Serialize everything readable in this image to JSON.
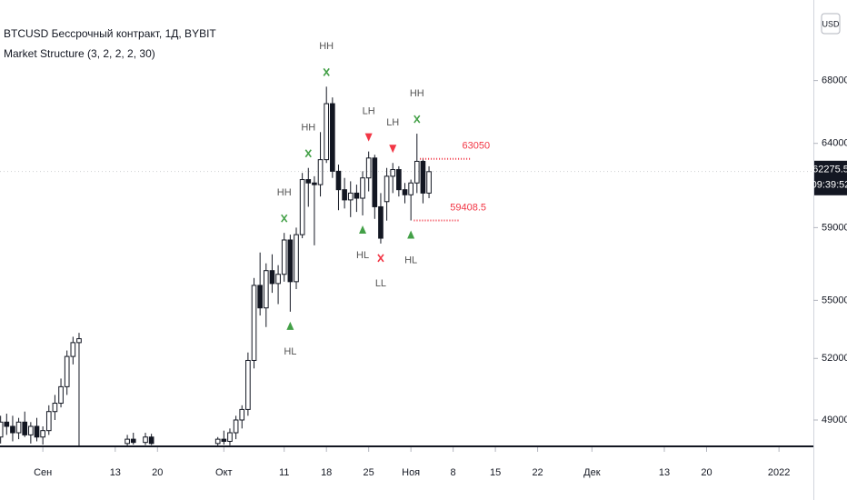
{
  "chart_data": {
    "type": "candlestick",
    "title": "BTCUSD Бессрочный контракт, 1Д, BYBIT",
    "subtitle": "Market Structure (3, 2, 2, 2, 30)",
    "currency": "USD",
    "log_scale": true,
    "x": [
      -7,
      -6,
      -5,
      -4,
      -3,
      -2,
      -1,
      0,
      1,
      2,
      3,
      4,
      5,
      6,
      14,
      15,
      17,
      18,
      29,
      30,
      31,
      32,
      33,
      34,
      35,
      36,
      37,
      38,
      39,
      40,
      41,
      42,
      43,
      44,
      45,
      46,
      47,
      48,
      49,
      50,
      51,
      52,
      53,
      54,
      55,
      56,
      57,
      58,
      59,
      60,
      61,
      62,
      63,
      64
    ],
    "open": [
      48200,
      48900,
      48700,
      48400,
      48900,
      48300,
      48700,
      48200,
      48500,
      49400,
      49800,
      50600,
      52100,
      52800,
      47900,
      48100,
      47950,
      48200,
      47900,
      48100,
      48000,
      48400,
      49000,
      49500,
      51900,
      55800,
      54600,
      56600,
      55900,
      56400,
      58300,
      56000,
      58600,
      61800,
      61600,
      61500,
      63000,
      66500,
      62300,
      61200,
      60600,
      61000,
      60700,
      61900,
      63100,
      60200,
      60500,
      62000,
      62400,
      61200,
      60900,
      61600,
      62900,
      61000
    ],
    "high": [
      49200,
      49300,
      49200,
      49100,
      49400,
      48900,
      49100,
      48700,
      49700,
      50200,
      51000,
      52400,
      53100,
      53300,
      48300,
      48400,
      48400,
      48350,
      48200,
      48500,
      48600,
      49200,
      49700,
      52300,
      56200,
      57600,
      57000,
      57500,
      56900,
      58700,
      58600,
      59000,
      62200,
      62500,
      62000,
      64700,
      67600,
      66900,
      62700,
      61900,
      61700,
      61500,
      62300,
      63500,
      63300,
      61000,
      62500,
      62800,
      62600,
      61600,
      61800,
      64600,
      63100,
      62600
    ],
    "low": [
      47900,
      48300,
      48000,
      48100,
      48200,
      47900,
      48000,
      47850,
      48300,
      49000,
      49600,
      50200,
      51700,
      47810,
      47810,
      47850,
      47830,
      47830,
      47810,
      47850,
      47820,
      48100,
      48600,
      49200,
      51500,
      54200,
      53600,
      55400,
      54800,
      56000,
      54400,
      55600,
      58400,
      60200,
      58000,
      60800,
      62800,
      61900,
      60000,
      60100,
      59600,
      59900,
      59700,
      61100,
      59500,
      58100,
      59400,
      61000,
      60800,
      60400,
      59408.5,
      61000,
      60400,
      60700
    ],
    "close": [
      48900,
      48700,
      48400,
      48900,
      48300,
      48700,
      48200,
      48500,
      49400,
      49800,
      50600,
      52100,
      52800,
      53000,
      48100,
      47950,
      48200,
      47900,
      48100,
      48000,
      48400,
      49000,
      49500,
      51900,
      55800,
      54600,
      56600,
      55900,
      56400,
      58300,
      56000,
      58600,
      61800,
      61600,
      61500,
      63000,
      66500,
      62300,
      61200,
      60600,
      61000,
      60700,
      61900,
      63100,
      60200,
      58400,
      62000,
      62400,
      61200,
      60900,
      61600,
      62900,
      61000,
      62275.5
    ],
    "xlim": [
      -7.1,
      127.7
    ],
    "xticks": [
      {
        "value": 0,
        "label": "Сен"
      },
      {
        "value": 12,
        "label": "13"
      },
      {
        "value": 19,
        "label": "20"
      },
      {
        "value": 30,
        "label": "Окт"
      },
      {
        "value": 40,
        "label": "11"
      },
      {
        "value": 47,
        "label": "18"
      },
      {
        "value": 54,
        "label": "25"
      },
      {
        "value": 61,
        "label": "Ноя"
      },
      {
        "value": 68,
        "label": "8"
      },
      {
        "value": 75,
        "label": "15"
      },
      {
        "value": 82,
        "label": "22"
      },
      {
        "value": 91,
        "label": "Дек"
      },
      {
        "value": 103,
        "label": "13"
      },
      {
        "value": 110,
        "label": "20"
      },
      {
        "value": 122,
        "label": "2022"
      }
    ],
    "ylim": [
      47810,
      73500
    ],
    "yticks": [
      {
        "value": 49000,
        "label": "49000.0"
      },
      {
        "value": 52000,
        "label": "52000.0"
      },
      {
        "value": 55000,
        "label": "55000.0"
      },
      {
        "value": 59000,
        "label": "59000.0"
      },
      {
        "value": 64000,
        "label": "64000.0"
      },
      {
        "value": 68000,
        "label": "68000.0"
      }
    ],
    "last_price": 62275.5,
    "countdown": "09:39:52",
    "markers": [
      {
        "text": "HH",
        "sign": "x",
        "color": "#43a047",
        "day": 40,
        "at": "high"
      },
      {
        "text": "HL",
        "sign": "up",
        "color": "#43a047",
        "day": 41,
        "at": "low"
      },
      {
        "text": "HH",
        "sign": "x",
        "color": "#43a047",
        "day": 44,
        "at": "high"
      },
      {
        "text": "HH",
        "sign": "x",
        "color": "#43a047",
        "day": 47,
        "at": "high"
      },
      {
        "text": "HL",
        "sign": "up",
        "color": "#43a047",
        "day": 53,
        "at": "low"
      },
      {
        "text": "LH",
        "sign": "down",
        "color": "#f23645",
        "day": 54,
        "at": "high"
      },
      {
        "text": "LL",
        "sign": "x",
        "color": "#f23645",
        "day": 56,
        "at": "low"
      },
      {
        "text": "LH",
        "sign": "down",
        "color": "#f23645",
        "day": 58,
        "at": "high"
      },
      {
        "text": "HL",
        "sign": "up",
        "color": "#43a047",
        "day": 61,
        "at": "low"
      },
      {
        "text": "HH",
        "sign": "x",
        "color": "#43a047",
        "day": 62,
        "at": "high"
      }
    ],
    "levels": [
      {
        "value": 63050,
        "from": 62.5,
        "to": 71,
        "color": "#f23645"
      },
      {
        "value": 59408.5,
        "from": 61.5,
        "to": 69,
        "color": "#f23645"
      }
    ]
  }
}
